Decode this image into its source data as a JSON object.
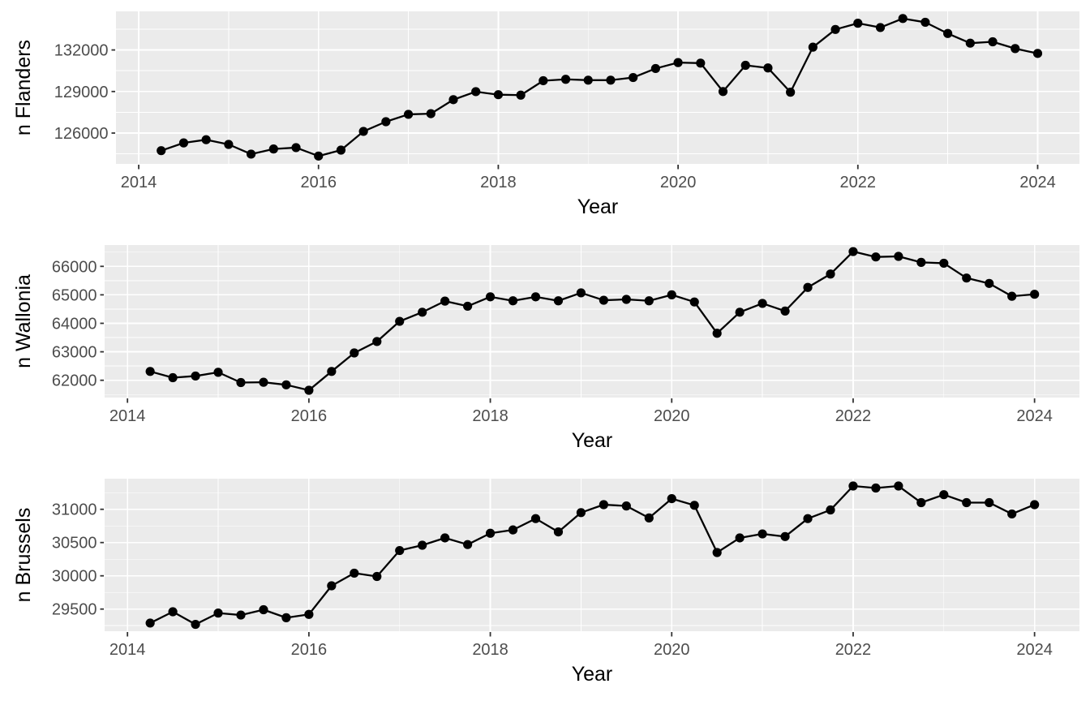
{
  "style": {
    "page_background": "#FFFFFF",
    "panel_background": "#EBEBEB",
    "grid_color": "#FFFFFF",
    "axis_tick_color": "#333333",
    "tick_label_color": "#4D4D4D",
    "axis_title_color": "#000000",
    "line_color": "#000000",
    "point_color": "#000000"
  },
  "chart_data": [
    {
      "type": "line",
      "title": "",
      "ylabel": "n Flanders",
      "xlabel": "Year",
      "legend": "none",
      "grid": "major+minor",
      "x": [
        2014.25,
        2014.5,
        2014.75,
        2015,
        2015.25,
        2015.5,
        2015.75,
        2016,
        2016.25,
        2016.5,
        2016.75,
        2017,
        2017.25,
        2017.5,
        2017.75,
        2018,
        2018.25,
        2018.5,
        2018.75,
        2019,
        2019.25,
        2019.5,
        2019.75,
        2020,
        2020.25,
        2020.5,
        2020.75,
        2021,
        2021.25,
        2021.5,
        2021.75,
        2022,
        2022.25,
        2022.5,
        2022.75,
        2023,
        2023.25,
        2023.5,
        2023.75,
        2024
      ],
      "values": [
        124730,
        125290,
        125520,
        125180,
        124480,
        124850,
        124950,
        124340,
        124770,
        126120,
        126820,
        127350,
        127400,
        128410,
        128990,
        128770,
        128740,
        129780,
        129880,
        129820,
        129820,
        130010,
        130660,
        131090,
        131050,
        129000,
        130890,
        130700,
        128950,
        132200,
        133480,
        133930,
        133620,
        134270,
        134000,
        133190,
        132490,
        132590,
        132100,
        131750
      ],
      "yticks": [
        126000,
        129000,
        132000
      ],
      "ytick_labels": [
        "126000",
        "129000",
        "132000"
      ],
      "y_minor": [
        124500,
        127500,
        130500,
        133500
      ],
      "xticks": [
        2014,
        2016,
        2018,
        2020,
        2022,
        2024
      ],
      "xtick_labels": [
        "2014",
        "2016",
        "2018",
        "2020",
        "2022",
        "2024"
      ],
      "x_minor": [
        2015,
        2017,
        2019,
        2021,
        2023
      ],
      "ylim": [
        123774,
        134787
      ],
      "xlim": [
        2013.747,
        2024.465
      ],
      "panel_left": 143
    },
    {
      "type": "line",
      "title": "",
      "ylabel": "n Wallonia",
      "xlabel": "Year",
      "legend": "none",
      "grid": "major+minor",
      "x": [
        2014.25,
        2014.5,
        2014.75,
        2015,
        2015.25,
        2015.5,
        2015.75,
        2016,
        2016.25,
        2016.5,
        2016.75,
        2017,
        2017.25,
        2017.5,
        2017.75,
        2018,
        2018.25,
        2018.5,
        2018.75,
        2019,
        2019.25,
        2019.5,
        2019.75,
        2020,
        2020.25,
        2020.5,
        2020.75,
        2021,
        2021.25,
        2021.5,
        2021.75,
        2022,
        2022.25,
        2022.5,
        2022.75,
        2023,
        2023.25,
        2023.5,
        2023.75,
        2024
      ],
      "values": [
        62310,
        62090,
        62150,
        62280,
        61920,
        61930,
        61840,
        61650,
        62310,
        62960,
        63360,
        64070,
        64390,
        64780,
        64600,
        64930,
        64790,
        64930,
        64790,
        65070,
        64810,
        64840,
        64790,
        65000,
        64750,
        63650,
        64390,
        64700,
        64430,
        65260,
        65730,
        66520,
        66330,
        66350,
        66140,
        66110,
        65590,
        65400,
        64950,
        65020
      ],
      "yticks": [
        62000,
        63000,
        64000,
        65000,
        66000
      ],
      "ytick_labels": [
        "62000",
        "63000",
        "64000",
        "65000",
        "66000"
      ],
      "y_minor": [
        61500,
        62500,
        63500,
        64500,
        65500,
        66500
      ],
      "xticks": [
        2014,
        2016,
        2018,
        2020,
        2022,
        2024
      ],
      "xtick_labels": [
        "2014",
        "2016",
        "2018",
        "2020",
        "2022",
        "2024"
      ],
      "x_minor": [
        2015,
        2017,
        2019,
        2021,
        2023
      ],
      "ylim": [
        61393,
        66749
      ],
      "xlim": [
        2013.748,
        2024.495
      ],
      "panel_left": 129
    },
    {
      "type": "line",
      "title": "",
      "ylabel": "n Brussels",
      "xlabel": "Year",
      "legend": "none",
      "grid": "major+minor",
      "x": [
        2014.25,
        2014.5,
        2014.75,
        2015,
        2015.25,
        2015.5,
        2015.75,
        2016,
        2016.25,
        2016.5,
        2016.75,
        2017,
        2017.25,
        2017.5,
        2017.75,
        2018,
        2018.25,
        2018.5,
        2018.75,
        2019,
        2019.25,
        2019.5,
        2019.75,
        2020,
        2020.25,
        2020.5,
        2020.75,
        2021,
        2021.25,
        2021.5,
        2021.75,
        2022,
        2022.25,
        2022.5,
        2022.75,
        2023,
        2023.25,
        2023.5,
        2023.75,
        2024
      ],
      "values": [
        29290,
        29460,
        29270,
        29440,
        29410,
        29490,
        29370,
        29420,
        29850,
        30040,
        29990,
        30380,
        30460,
        30570,
        30470,
        30640,
        30690,
        30860,
        30660,
        30950,
        31070,
        31050,
        30870,
        31160,
        31060,
        30350,
        30570,
        30630,
        30590,
        30860,
        30990,
        31350,
        31320,
        31350,
        31100,
        31220,
        31100,
        31100,
        30930,
        31070
      ],
      "yticks": [
        29500,
        30000,
        30500,
        31000
      ],
      "ytick_labels": [
        "29500",
        "30000",
        "30500",
        "31000"
      ],
      "y_minor": [
        29250,
        29750,
        30250,
        30750,
        31250
      ],
      "xticks": [
        2014,
        2016,
        2018,
        2020,
        2022,
        2024
      ],
      "xtick_labels": [
        "2014",
        "2016",
        "2018",
        "2020",
        "2022",
        "2024"
      ],
      "x_minor": [
        2015,
        2017,
        2019,
        2021,
        2023
      ],
      "ylim": [
        29167,
        31460
      ],
      "xlim": [
        2013.748,
        2024.495
      ],
      "panel_left": 129
    }
  ]
}
